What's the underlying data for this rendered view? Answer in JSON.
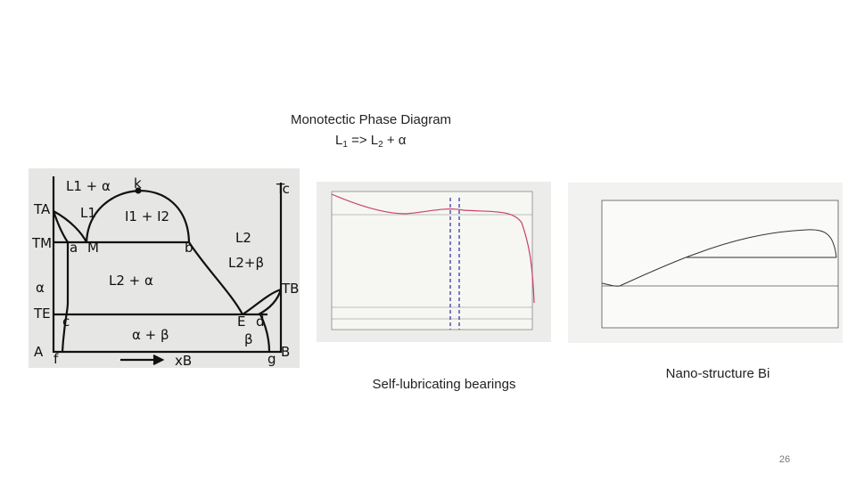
{
  "title": "Monotectic Phase Diagram",
  "formula": {
    "a": "L",
    "a_sub": "1",
    "b": " => L",
    "b_sub": "2",
    "c": " + α"
  },
  "captions": [
    "Self-lubricating bearings",
    "Nano-structure Bi"
  ],
  "page_number": "26",
  "phase_labels": [
    "L1 + α",
    "k",
    "Tc",
    "TA",
    "L1",
    "I1 + I2",
    "TM",
    "a",
    "M",
    "b",
    "L2",
    "L2+β",
    "TB",
    "α",
    "L2 + α",
    "TE",
    "c",
    "E",
    "d",
    "α + β",
    "β",
    "A",
    "f",
    "xB",
    "g",
    "B"
  ]
}
